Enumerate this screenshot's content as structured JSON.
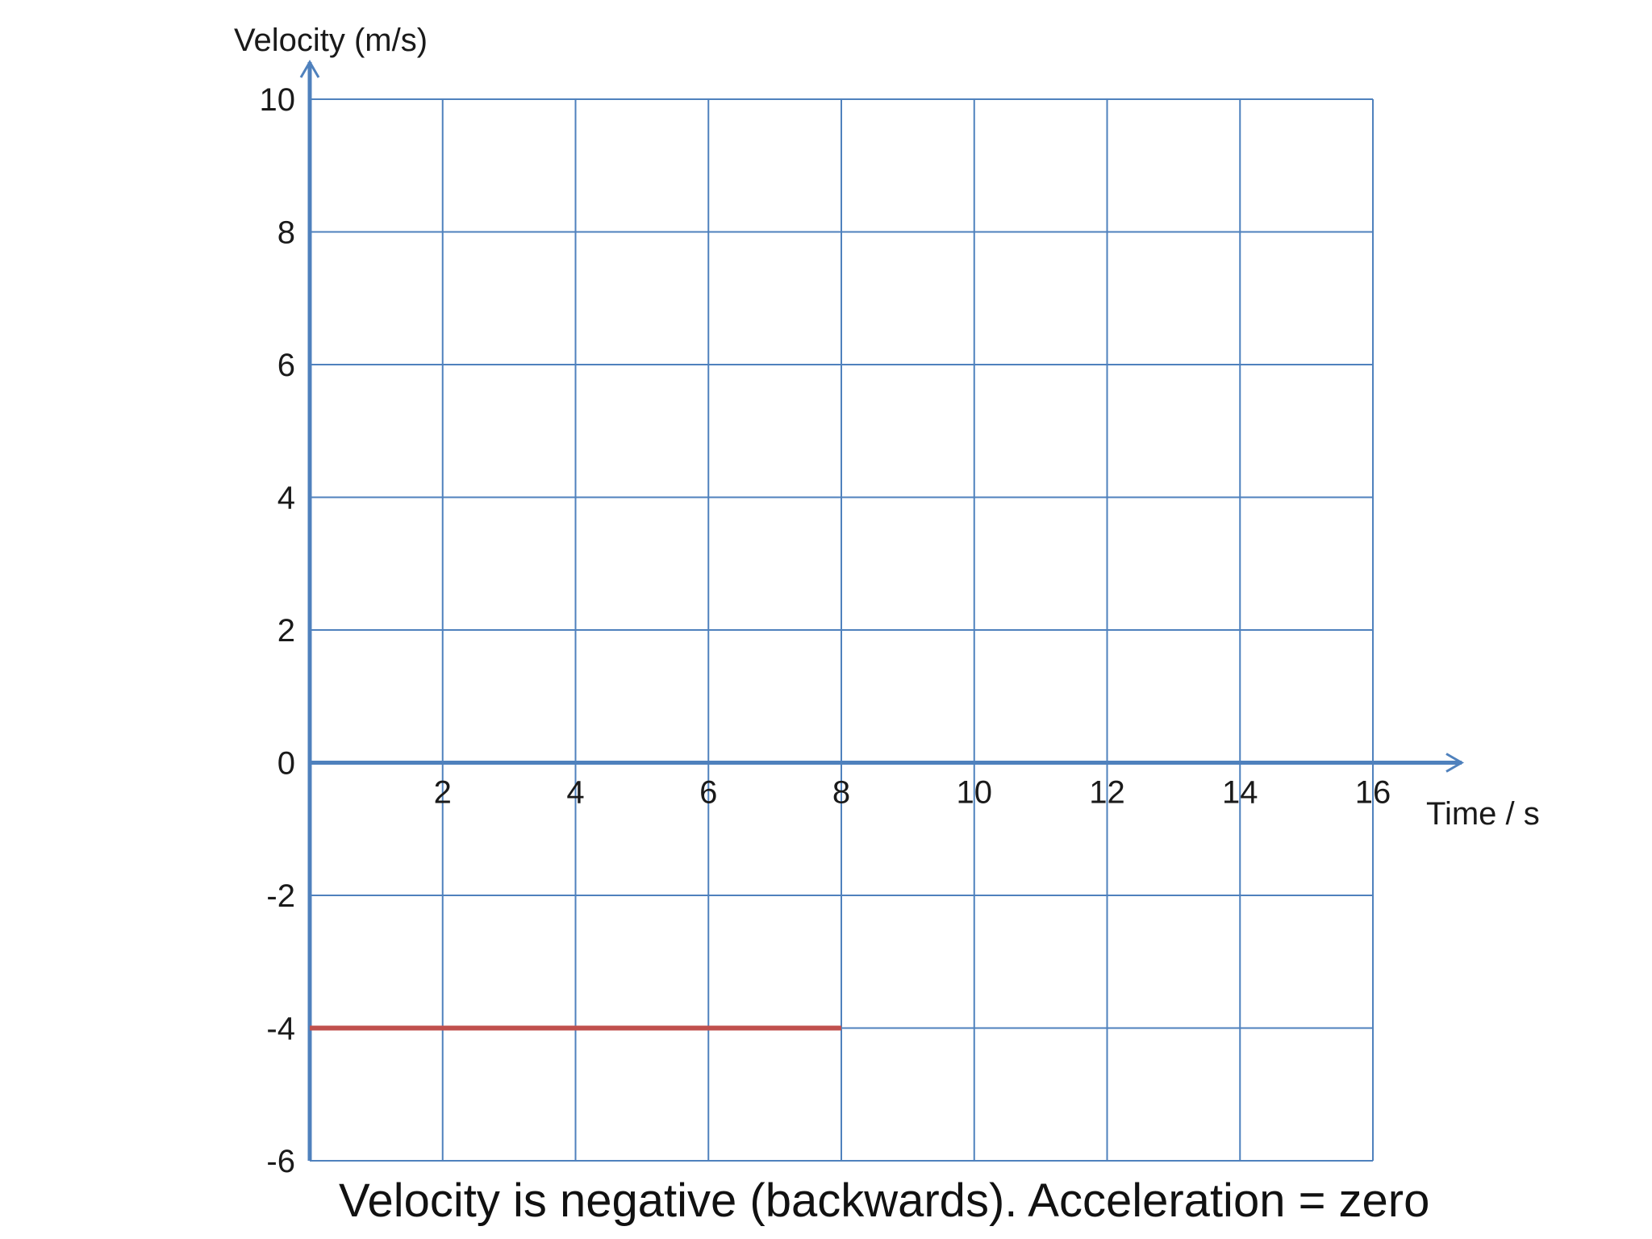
{
  "chart_data": {
    "type": "line",
    "title": "",
    "xlabel": "Time / s",
    "ylabel": "Velocity (m/s)",
    "xlim": [
      0,
      16
    ],
    "ylim": [
      -6,
      10
    ],
    "x_ticks": [
      2,
      4,
      6,
      8,
      10,
      12,
      14,
      16
    ],
    "y_ticks": [
      10,
      8,
      6,
      4,
      2,
      0,
      -2,
      -4,
      -6
    ],
    "grid": true,
    "series": [
      {
        "x": [
          0,
          8
        ],
        "y": [
          -4,
          -4
        ],
        "color": "#c0504d"
      }
    ],
    "caption": "Velocity is negative (backwards). Acceleration = zero"
  },
  "colors": {
    "grid": "#4f81bd",
    "axis": "#4f81bd",
    "line": "#c0504d"
  }
}
